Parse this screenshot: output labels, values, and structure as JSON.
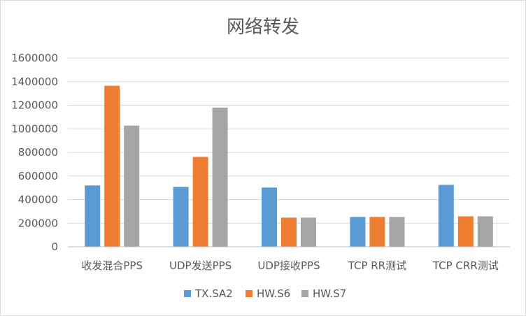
{
  "chart_data": {
    "type": "bar",
    "title": "网络转发",
    "categories": [
      "收发混合PPS",
      "UDP发送PPS",
      "UDP接收PPS",
      "TCP RR测试",
      "TCP CRR测试"
    ],
    "series": [
      {
        "name": "TX.SA2",
        "color": "#5b9bd5",
        "values": [
          520000,
          508000,
          502000,
          253000,
          525000
        ]
      },
      {
        "name": "HW.S6",
        "color": "#ed7d31",
        "values": [
          1365000,
          762000,
          247000,
          253000,
          258000
        ]
      },
      {
        "name": "HW.S7",
        "color": "#a5a5a5",
        "values": [
          1027000,
          1180000,
          247000,
          253000,
          258000
        ]
      }
    ],
    "ylim": [
      0,
      1600000
    ],
    "yticks": [
      0,
      200000,
      400000,
      600000,
      800000,
      1000000,
      1200000,
      1400000,
      1600000
    ],
    "grid": true,
    "legend_position": "bottom"
  }
}
